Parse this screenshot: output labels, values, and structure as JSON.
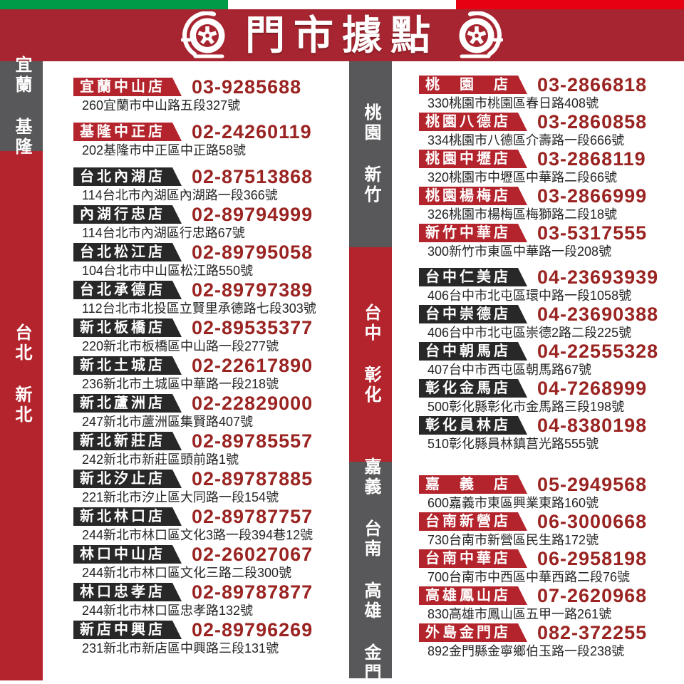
{
  "header": {
    "title": "門市據點"
  },
  "flag_stripe": {
    "colors": [
      "#009B48",
      "#FFFFFF",
      "#E60012"
    ]
  },
  "colors": {
    "banner": "#A72530",
    "badge_red": "#B4242C",
    "badge_black": "#282828",
    "bar_red": "#B4242C",
    "bar_gray": "#58585A",
    "phone_text": "#9A2422",
    "address_text": "#252525"
  },
  "region_bars": {
    "left": [
      {
        "label": "宜蘭 基隆",
        "variant": "gray"
      },
      {
        "label": "台北 新北",
        "variant": "red"
      }
    ],
    "middle": [
      {
        "label": "桃園 新竹",
        "variant": "gray"
      },
      {
        "label": "台中 彰化",
        "variant": "red"
      },
      {
        "label": "嘉義 台南 高雄 金門",
        "variant": "gray"
      }
    ]
  },
  "columns": {
    "left": [
      {
        "region": "宜蘭 基隆",
        "badge_variant": "red",
        "stores": [
          {
            "name": "宜蘭中山店",
            "phone": "03-9285688",
            "address": "260宜蘭市中山路五段327號"
          },
          {
            "name": "基隆中正店",
            "phone": "02-24260119",
            "address": "202基隆市中正區中正路58號"
          }
        ]
      },
      {
        "region": "台北 新北",
        "badge_variant": "black",
        "stores": [
          {
            "name": "台北內湖店",
            "phone": "02-87513868",
            "address": "114台北市內湖區內湖路一段366號"
          },
          {
            "name": "內湖行忠店",
            "phone": "02-89794999",
            "address": "114台北市內湖區行忠路67號"
          },
          {
            "name": "台北松江店",
            "phone": "02-89795058",
            "address": "104台北市中山區松江路550號"
          },
          {
            "name": "台北承德店",
            "phone": "02-89797389",
            "address": "112台北市北投區立賢里承德路七段303號"
          },
          {
            "name": "新北板橋店",
            "phone": "02-89535377",
            "address": "220新北市板橋區中山路一段277號"
          },
          {
            "name": "新北土城店",
            "phone": "02-22617890",
            "address": "236新北市土城區中華路一段218號"
          },
          {
            "name": "新北蘆洲店",
            "phone": "02-22829000",
            "address": "247新北市蘆洲區集賢路407號"
          },
          {
            "name": "新北新莊店",
            "phone": "02-89785557",
            "address": "242新北市新莊區頭前路1號"
          },
          {
            "name": "新北汐止店",
            "phone": "02-89787885",
            "address": "221新北市汐止區大同路一段154號"
          },
          {
            "name": "新北林口店",
            "phone": "02-89787757",
            "address": "244新北市林口區文化3路一段394巷12號"
          },
          {
            "name": "林口中山店",
            "phone": "02-26027067",
            "address": "244新北市林口區文化三路二段300號"
          },
          {
            "name": "林口忠孝店",
            "phone": "02-89787877",
            "address": "244新北市林口區忠孝路132號"
          },
          {
            "name": "新店中興店",
            "phone": "02-89796269",
            "address": "231新北市新店區中興路三段131號"
          }
        ]
      }
    ],
    "right": [
      {
        "region": "桃園 新竹",
        "badge_variant": "red",
        "stores": [
          {
            "name": "桃　園　店",
            "phone": "03-2866818",
            "address": "330桃園市桃園區春日路408號"
          },
          {
            "name": "桃園八德店",
            "phone": "03-2860858",
            "address": "334桃園市八德區介壽路一段666號"
          },
          {
            "name": "桃園中壢店",
            "phone": "03-2868119",
            "address": "320桃園市中壢區中華路二段66號"
          },
          {
            "name": "桃園楊梅店",
            "phone": "03-2866999",
            "address": "326桃園市楊梅區梅獅路二段18號"
          },
          {
            "name": "新竹中華店",
            "phone": "03-5317555",
            "address": "300新竹市東區中華路一段208號"
          }
        ]
      },
      {
        "region": "台中 彰化",
        "badge_variant": "black",
        "stores": [
          {
            "name": "台中仁美店",
            "phone": "04-23693939",
            "address": "406台中市北屯區環中路一段1058號"
          },
          {
            "name": "台中崇德店",
            "phone": "04-23690388",
            "address": "406台中市北屯區崇德2路二段225號"
          },
          {
            "name": "台中朝馬店",
            "phone": "04-22555328",
            "address": "407台中市西屯區朝馬路67號"
          },
          {
            "name": "彰化金馬店",
            "phone": "04-7268999",
            "address": "500彰化縣彰化市金馬路三段198號"
          },
          {
            "name": "彰化員林店",
            "phone": "04-8380198",
            "address": "510彰化縣員林鎮莒光路555號"
          }
        ]
      },
      {
        "region": "嘉義 台南 高雄 金門",
        "badge_variant": "red",
        "stores": [
          {
            "name": "嘉　義　店",
            "phone": "05-2949568",
            "address": "600嘉義市東區興業東路160號"
          },
          {
            "name": "台南新營店",
            "phone": "06-3000668",
            "address": "730台南市新營區民生路172號"
          },
          {
            "name": "台南中華店",
            "phone": "06-2958198",
            "address": "700台南市中西區中華西路二段76號"
          },
          {
            "name": "高雄鳳山店",
            "phone": "07-2620968",
            "address": "830高雄市鳳山區五甲一路261號"
          },
          {
            "name": "外島金門店",
            "phone": "082-372255",
            "address": "892金門縣金寧鄉伯玉路一段238號"
          }
        ]
      }
    ]
  }
}
